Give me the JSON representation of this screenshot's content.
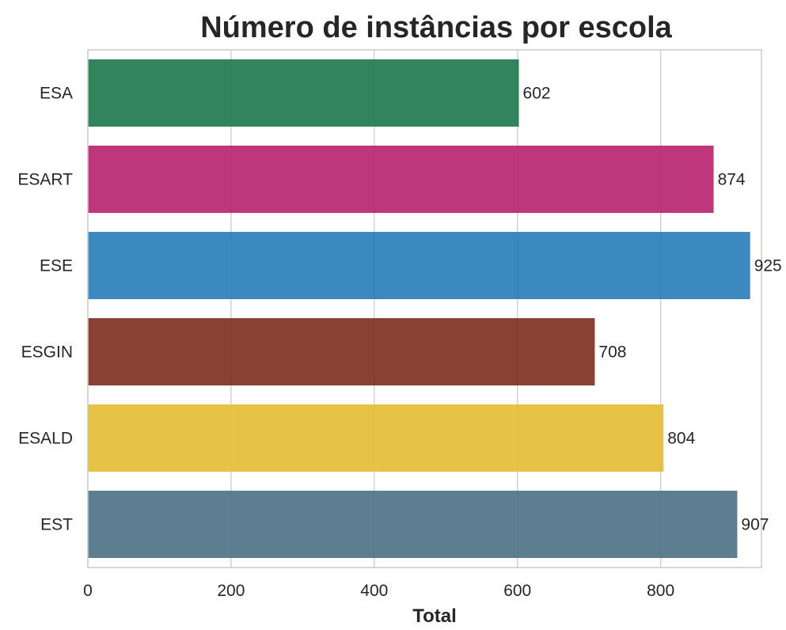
{
  "chart_data": {
    "type": "bar",
    "orientation": "horizontal",
    "title": "Número de instâncias por escola",
    "xlabel": "Total",
    "ylabel": "",
    "categories": [
      "ESA",
      "ESART",
      "ESE",
      "ESGIN",
      "ESALD",
      "EST"
    ],
    "values": [
      602,
      874,
      925,
      708,
      804,
      907
    ],
    "colors": [
      "#1f7a4d",
      "#b82672",
      "#2a7fba",
      "#7e3122",
      "#e4bd35",
      "#4f7288"
    ],
    "xlim": [
      0,
      960
    ],
    "xticks": [
      0,
      200,
      400,
      600,
      800
    ],
    "grid": true,
    "data_labels": true
  }
}
